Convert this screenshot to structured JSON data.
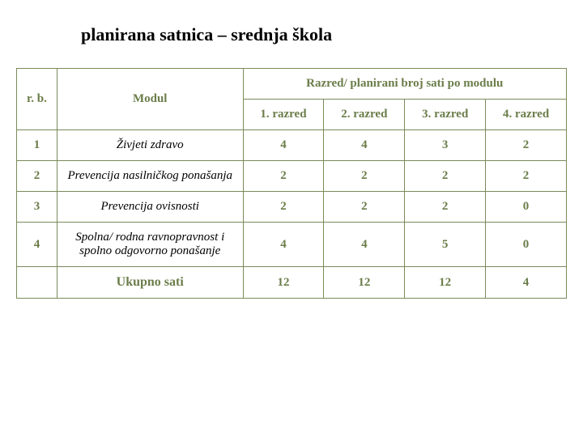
{
  "title": "planirana satnica – srednja škola",
  "headers": {
    "rb": "r. b.",
    "modul": "Modul",
    "span": "Razred/ planirani broj sati po modulu",
    "cols": [
      "1. razred",
      "2. razred",
      "3. razred",
      "4. razred"
    ]
  },
  "rows": [
    {
      "n": "1",
      "modul": "Živjeti zdravo",
      "vals": [
        "4",
        "4",
        "3",
        "2"
      ]
    },
    {
      "n": "2",
      "modul": "Prevencija nasilničkog ponašanja",
      "vals": [
        "2",
        "2",
        "2",
        "2"
      ]
    },
    {
      "n": "3",
      "modul": "Prevencija ovisnosti",
      "vals": [
        "2",
        "2",
        "2",
        "0"
      ]
    },
    {
      "n": "4",
      "modul": "Spolna/ rodna ravnopravnost i spolno odgovorno ponašanje",
      "vals": [
        "4",
        "4",
        "5",
        "0"
      ]
    }
  ],
  "total": {
    "label": "Ukupno sati",
    "vals": [
      "12",
      "12",
      "12",
      "4"
    ]
  },
  "colors": {
    "border": "#7a8a5a",
    "accent": "#6b7d4a",
    "text": "#000000",
    "bg": "#ffffff"
  }
}
